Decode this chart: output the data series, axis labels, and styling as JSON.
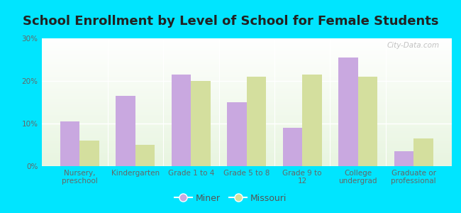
{
  "title": "School Enrollment by Level of School for Female Students",
  "categories": [
    "Nursery,\npreschool",
    "Kindergarten",
    "Grade 1 to 4",
    "Grade 5 to 8",
    "Grade 9 to\n12",
    "College\nundergrad",
    "Graduate or\nprofessional"
  ],
  "miner_values": [
    10.5,
    16.5,
    21.5,
    15.0,
    9.0,
    25.5,
    3.5
  ],
  "missouri_values": [
    6.0,
    5.0,
    20.0,
    21.0,
    21.5,
    21.0,
    6.5
  ],
  "miner_color": "#c9a8e0",
  "missouri_color": "#d4df9e",
  "background_color": "#00e5ff",
  "ylim": [
    0,
    30
  ],
  "yticks": [
    0,
    10,
    20,
    30
  ],
  "ytick_labels": [
    "0%",
    "10%",
    "20%",
    "30%"
  ],
  "legend_labels": [
    "Miner",
    "Missouri"
  ],
  "watermark": "City-Data.com",
  "bar_width": 0.35,
  "title_fontsize": 13,
  "tick_fontsize": 7.5,
  "legend_fontsize": 9
}
